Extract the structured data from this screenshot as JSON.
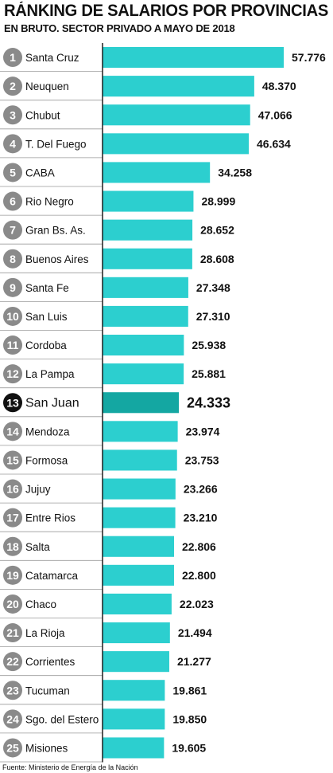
{
  "title": "RÁNKING DE SALARIOS POR PROVINCIAS",
  "subtitle": "EN BRUTO. SECTOR PRIVADO A MAYO DE 2018",
  "source": "Fuente: Ministerio de Energía de la Nación",
  "colors": {
    "bar": "#2ccfcf",
    "highlight_bar": "#14a7a2",
    "rank_badge": "#8a8a8a",
    "highlight_badge": "#111111",
    "row_divider": "#9a9a9a",
    "axis": "#111111"
  },
  "chart_data": {
    "type": "bar",
    "orientation": "horizontal",
    "highlighted_category": "San Juan",
    "ranks": [
      "1",
      "2",
      "3",
      "4",
      "5",
      "6",
      "7",
      "8",
      "9",
      "10",
      "11",
      "12",
      "13",
      "14",
      "15",
      "16",
      "17",
      "18",
      "19",
      "20",
      "21",
      "22",
      "23",
      "24",
      "25"
    ],
    "categories": [
      "Santa Cruz",
      "Neuquen",
      "Chubut",
      "T. Del Fuego",
      "CABA",
      "Rio Negro",
      "Gran Bs. As.",
      "Buenos Aires",
      "Santa Fe",
      "San Luis",
      "Cordoba",
      "La Pampa",
      "San Juan",
      "Mendoza",
      "Formosa",
      "Jujuy",
      "Entre Rios",
      "Salta",
      "Catamarca",
      "Chaco",
      "La Rioja",
      "Corrientes",
      "Tucuman",
      "Sgo. del Estero",
      "Misiones"
    ],
    "values": [
      57776,
      48370,
      47066,
      46634,
      34258,
      28999,
      28652,
      28608,
      27348,
      27310,
      25938,
      25881,
      24333,
      23974,
      23753,
      23266,
      23210,
      22806,
      22800,
      22023,
      21494,
      21277,
      19861,
      19850,
      19605
    ],
    "value_labels": [
      "57.776",
      "48.370",
      "47.066",
      "46.634",
      "34.258",
      "28.999",
      "28.652",
      "28.608",
      "27.348",
      "27.310",
      "25.938",
      "25.881",
      "24.333",
      "23.974",
      "23.753",
      "23.266",
      "23.210",
      "22.806",
      "22.800",
      "22.023",
      "21.494",
      "21.277",
      "19.861",
      "19.850",
      "19.605"
    ],
    "xlim": [
      0,
      60000
    ]
  }
}
